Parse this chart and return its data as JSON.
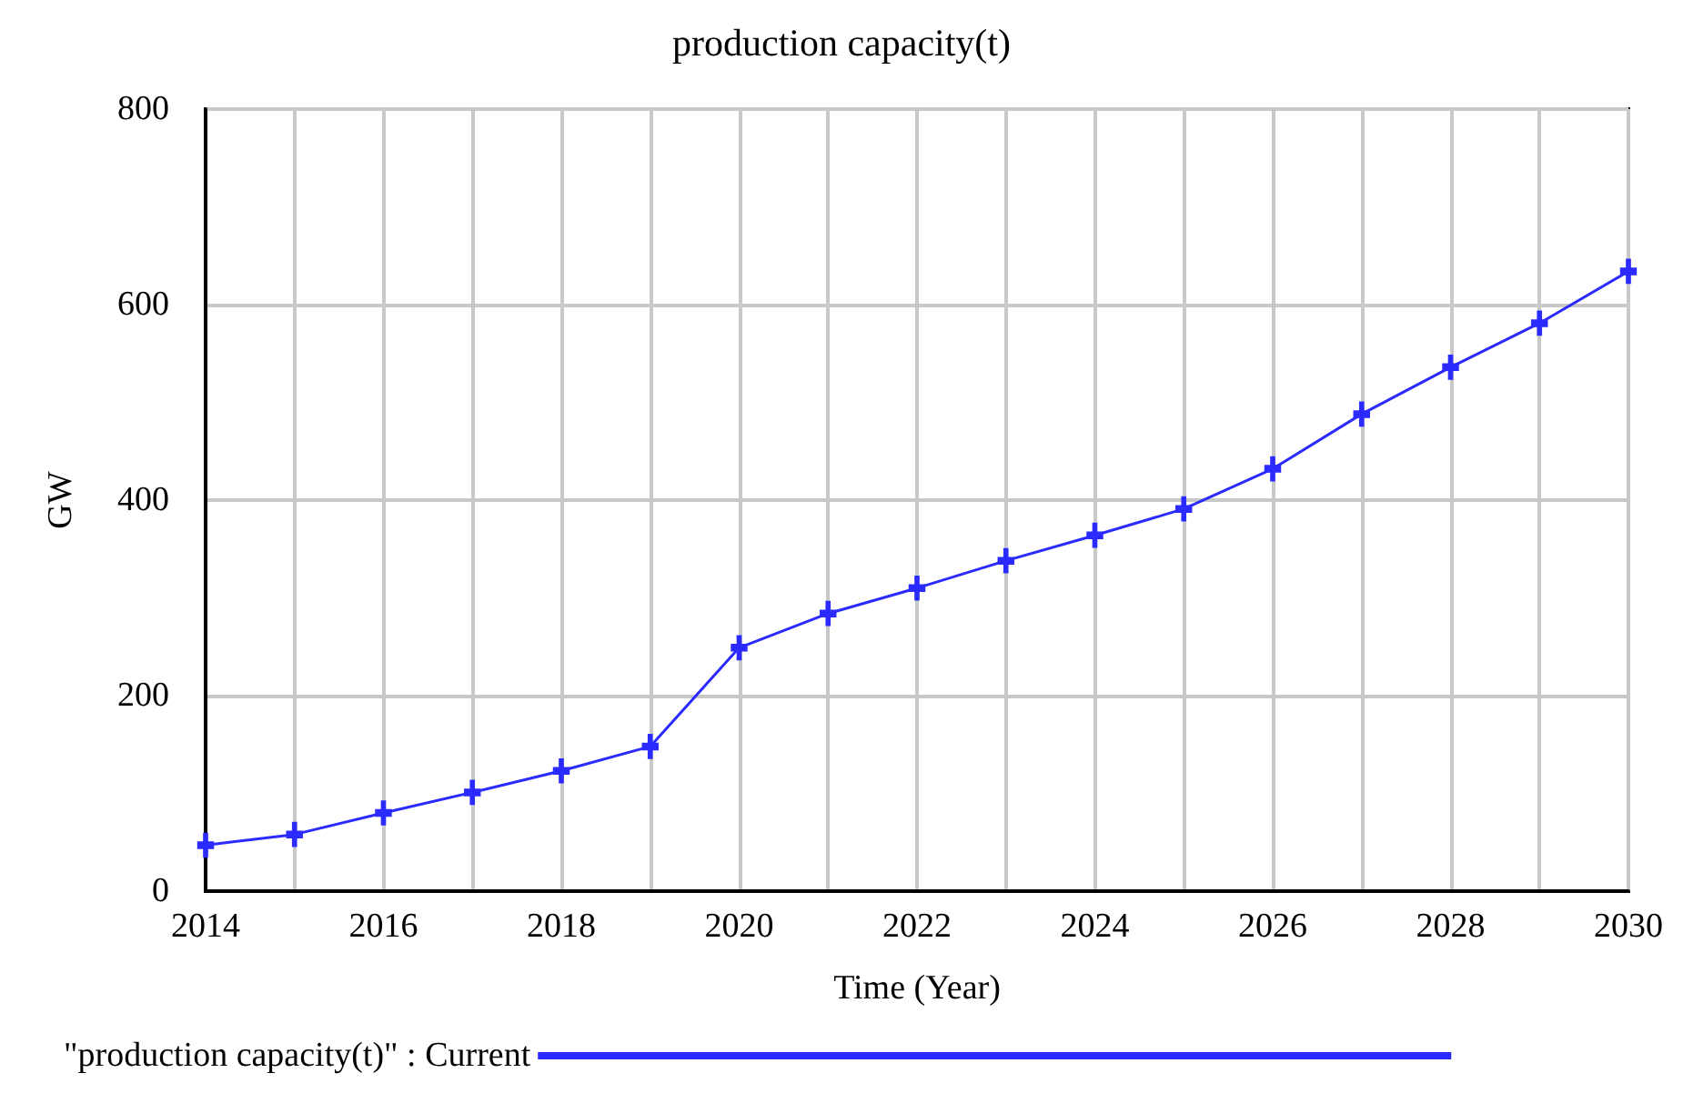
{
  "chart_data": {
    "type": "line",
    "title": "production capacity(t)",
    "xlabel": "Time (Year)",
    "ylabel": "GW",
    "x": [
      2014,
      2015,
      2016,
      2017,
      2018,
      2019,
      2020,
      2021,
      2022,
      2023,
      2024,
      2025,
      2026,
      2027,
      2028,
      2029,
      2030
    ],
    "series": [
      {
        "name": "\"production capacity(t)\" : Current",
        "color": "#2b2bff",
        "values": [
          47,
          58,
          80,
          101,
          123,
          148,
          249,
          284,
          310,
          338,
          364,
          391,
          432,
          488,
          536,
          581,
          634
        ]
      }
    ],
    "xlim": [
      2014,
      2030
    ],
    "xticks": [
      2014,
      {
        "value": 2015,
        "label": null
      },
      2016,
      {
        "value": 2017,
        "label": null
      },
      2018,
      {
        "value": 2019,
        "label": null
      },
      2020,
      {
        "value": 2021,
        "label": null
      },
      2022,
      {
        "value": 2023,
        "label": null
      },
      2024,
      {
        "value": 2025,
        "label": null
      },
      2026,
      {
        "value": 2027,
        "label": null
      },
      2028,
      {
        "value": 2029,
        "label": null
      },
      2030
    ],
    "ylim": [
      0,
      800
    ],
    "yticks": [
      0,
      200,
      400,
      600,
      800
    ],
    "grid": true,
    "legend": "bottom",
    "marker": "cross",
    "line_style": "solid"
  }
}
